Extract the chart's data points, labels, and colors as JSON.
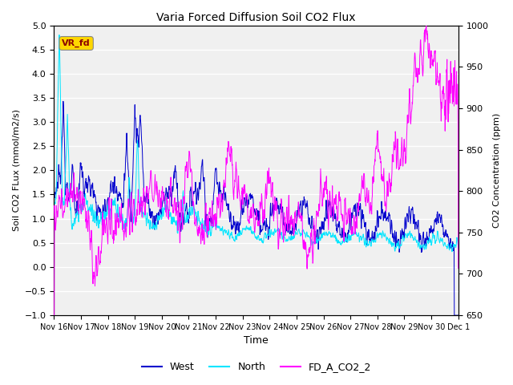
{
  "title": "Varia Forced Diffusion Soil CO2 Flux",
  "xlabel": "Time",
  "ylabel_left": "Soil CO2 FLux (mmol/m2/s)",
  "ylabel_right": "CO2 Concentration (ppm)",
  "ylim_left": [
    -1.0,
    5.0
  ],
  "ylim_right": [
    650,
    1000
  ],
  "yticks_left": [
    -1.0,
    -0.5,
    0.0,
    0.5,
    1.0,
    1.5,
    2.0,
    2.5,
    3.0,
    3.5,
    4.0,
    4.5,
    5.0
  ],
  "yticks_right": [
    650,
    700,
    750,
    800,
    850,
    900,
    950,
    1000
  ],
  "xtick_labels": [
    "Nov 16",
    "Nov 17",
    "Nov 18",
    "Nov 19",
    "Nov 20",
    "Nov 21",
    "Nov 22",
    "Nov 23",
    "Nov 24",
    "Nov 25",
    "Nov 26",
    "Nov 27",
    "Nov 28",
    "Nov 29",
    "Nov 30",
    "Dec 1"
  ],
  "color_west": "#0000CD",
  "color_north": "#00E5FF",
  "color_co2": "#FF00FF",
  "annotation_text": "VR_fd",
  "annotation_bg": "#FFD700",
  "legend_labels": [
    "West",
    "North",
    "FD_A_CO2_2"
  ],
  "background_color": "#DCDCDC",
  "grid_color": "#FFFFFF",
  "num_days": 15,
  "points_per_day": 96,
  "band_colors": [
    "#E8E8E8",
    "#D0D0D0"
  ]
}
